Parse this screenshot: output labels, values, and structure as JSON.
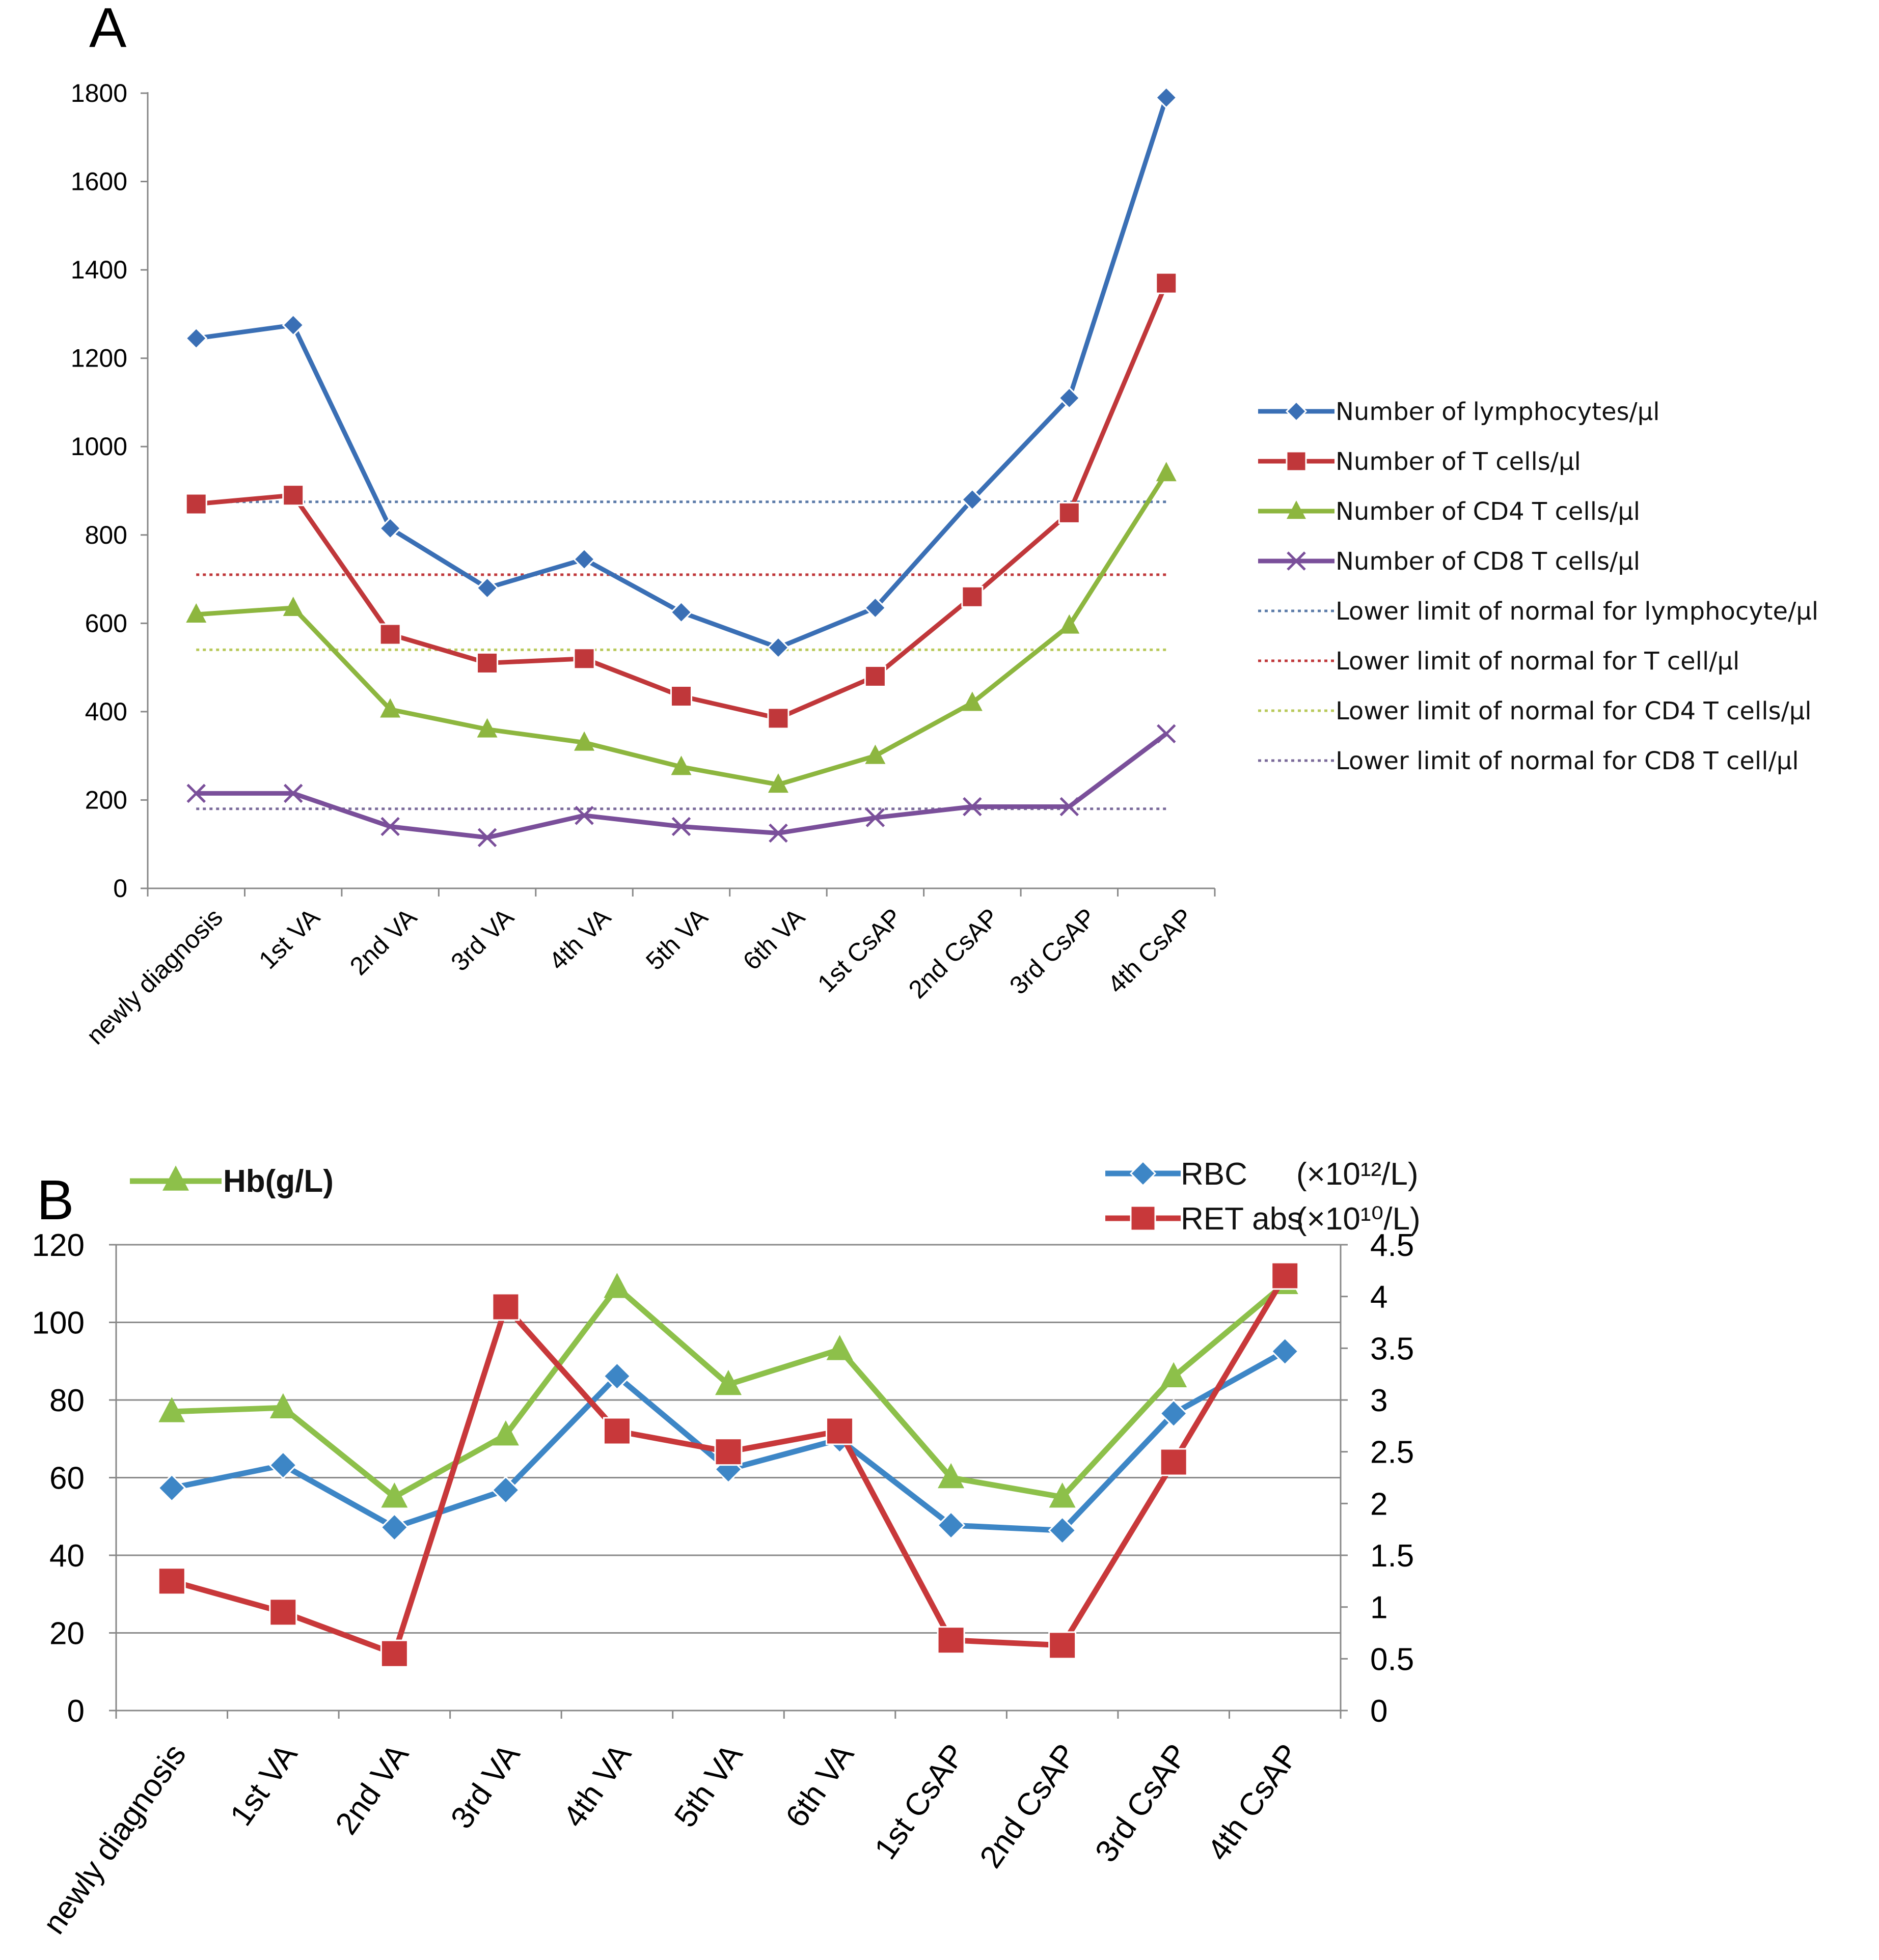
{
  "chart_data": [
    {
      "panel": "A",
      "type": "line",
      "categories": [
        "newly diagnosis",
        "1st VA",
        "2nd VA",
        "3rd VA",
        "4th VA",
        "5th VA",
        "6th VA",
        "1st CsAP",
        "2nd CsAP",
        "3rd CsAP",
        "4th CsAP"
      ],
      "ylim": [
        0,
        1800
      ],
      "yticks": [
        "0",
        "200",
        "400",
        "600",
        "800",
        "1000",
        "1200",
        "1400",
        "1600",
        "1800"
      ],
      "series": [
        {
          "name": "Number of lymphocytes/μl",
          "color": "#3a6fb5",
          "marker": "diamond",
          "values": [
            1245,
            1275,
            815,
            680,
            745,
            625,
            545,
            635,
            880,
            1110,
            1790
          ]
        },
        {
          "name": "Number of T cells/μl",
          "color": "#c0373a",
          "marker": "square",
          "values": [
            870,
            890,
            575,
            510,
            520,
            435,
            385,
            480,
            660,
            850,
            1370
          ]
        },
        {
          "name": "Number of CD4 T cells/μl",
          "color": "#8db63f",
          "marker": "triangle",
          "values": [
            620,
            635,
            405,
            360,
            330,
            275,
            235,
            300,
            420,
            595,
            940
          ]
        },
        {
          "name": "Number of CD8 T cells/μl",
          "color": "#7a4f9a",
          "marker": "x",
          "values": [
            215,
            215,
            140,
            115,
            165,
            140,
            125,
            160,
            185,
            185,
            350
          ]
        }
      ],
      "reference_lines": [
        {
          "name": "Lower limit of normal for lymphocyte/μl",
          "color": "#5a7aa8",
          "value": 875
        },
        {
          "name": "Lower limit of normal for T cell/μl",
          "color": "#c0373a",
          "value": 710
        },
        {
          "name": "Lower limit of normal for CD4 T cells/μl",
          "color": "#b8c95a",
          "value": 540
        },
        {
          "name": "Lower limit of normal for CD8 T cell/μl",
          "color": "#7a6a9a",
          "value": 180
        }
      ],
      "legend_position": "right"
    },
    {
      "panel": "B",
      "type": "line",
      "categories": [
        "newly diagnosis",
        "1st VA",
        "2nd VA",
        "3rd VA",
        "4th VA",
        "5th VA",
        "6th VA",
        "1st CsAP",
        "2nd CsAP",
        "3rd CsAP",
        "4th CsAP"
      ],
      "ylim_left": [
        0,
        120
      ],
      "ylim_right": [
        0,
        4.5
      ],
      "yticks_left": [
        "0",
        "20",
        "40",
        "60",
        "80",
        "100",
        "120"
      ],
      "yticks_right": [
        "0",
        "0.5",
        "1",
        "1.5",
        "2",
        "2.5",
        "3",
        "3.5",
        "4",
        "4.5"
      ],
      "grid": true,
      "series": [
        {
          "name": "Hb(g/L)",
          "axis": "left",
          "color": "#8dc04a",
          "marker": "triangle",
          "values": [
            77,
            78,
            55,
            71,
            109,
            84,
            93,
            60,
            55,
            86,
            110
          ]
        },
        {
          "name": "RBC",
          "unit": "(×10¹²/L)",
          "axis": "right",
          "color": "#3d86c6",
          "marker": "diamond",
          "values": [
            2.15,
            2.37,
            1.77,
            2.13,
            3.23,
            2.33,
            2.62,
            1.79,
            1.74,
            2.87,
            3.47
          ]
        },
        {
          "name": "RET abs",
          "unit": "(×10¹⁰/L)",
          "axis": "right",
          "color": "#c8383a",
          "marker": "square",
          "values": [
            1.25,
            0.95,
            0.55,
            3.9,
            2.7,
            2.5,
            2.7,
            0.68,
            0.63,
            2.4,
            4.2
          ]
        }
      ]
    }
  ]
}
